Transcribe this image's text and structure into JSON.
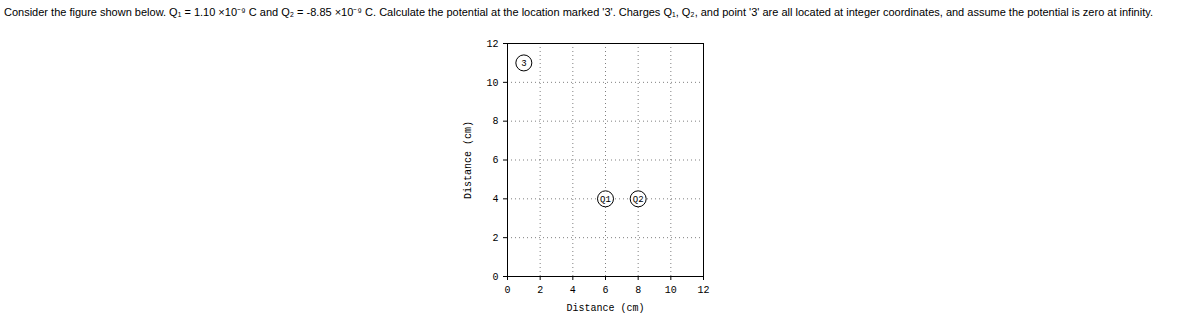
{
  "chart_data": {
    "type": "scatter",
    "title": "Consider the figure shown below. Q₁ = 1.10 ×10⁻⁹ C and Q₂ = -8.85 ×10⁻⁹ C. Calculate the potential at the location marked '3'. Charges Q₁, Q₂, and point '3' are all located at integer coordinates, and assume the potential is zero at infinity.",
    "x_label": "Distance (cm)",
    "y_label": "Distance (cm)",
    "points": [
      {
        "label": "3",
        "x": 1,
        "y": 11
      },
      {
        "label": "Q1",
        "x": 6,
        "y": 4
      },
      {
        "label": "Q2",
        "x": 8,
        "y": 4
      }
    ],
    "xlim": [
      0,
      12
    ],
    "ylim": [
      0,
      12
    ],
    "xticks": [
      0,
      2,
      4,
      6,
      8,
      10,
      12
    ],
    "yticks": [
      0,
      2,
      4,
      6,
      8,
      10,
      12
    ],
    "grid": true,
    "marker": "circle"
  }
}
